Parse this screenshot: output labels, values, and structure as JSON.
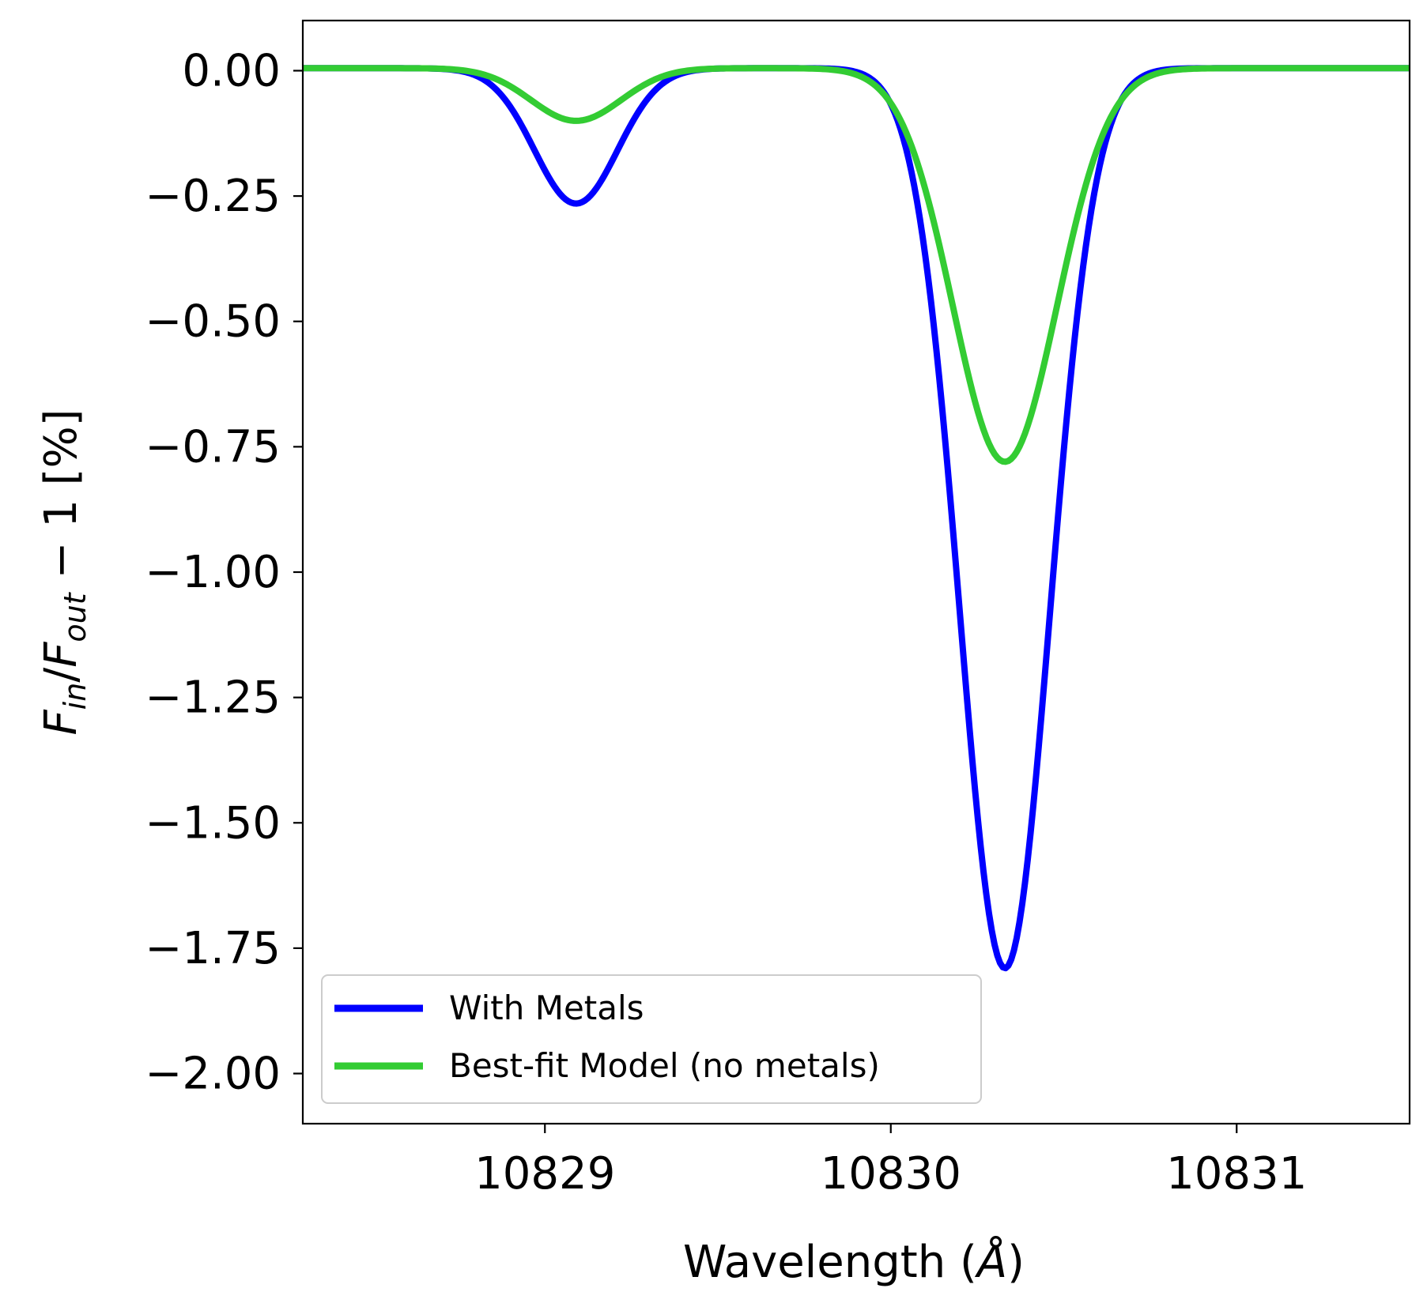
{
  "chart_data": {
    "type": "line",
    "title": "",
    "xlabel": "Wavelength ($\\AA$)",
    "xlabel_parts": {
      "prefix": "Wavelength (",
      "unit": "Å",
      "suffix": ")"
    },
    "ylabel": "$F_{in}/F_{out} - 1$ [%]",
    "ylabel_parts": {
      "f1": "F",
      "sub1": "in",
      "slash": "/",
      "f2": "F",
      "sub2": "out",
      "tail": " − 1 [%]"
    },
    "xlim": [
      10828.3,
      10831.5
    ],
    "ylim": [
      -2.1,
      0.1
    ],
    "xticks": [
      10829,
      10830,
      10831
    ],
    "xtick_labels": [
      "10829",
      "10830",
      "10831"
    ],
    "yticks": [
      0.0,
      -0.25,
      -0.5,
      -0.75,
      -1.0,
      -1.25,
      -1.5,
      -1.75,
      -2.0
    ],
    "ytick_labels": [
      "0.00",
      "−0.25",
      "−0.50",
      "−0.75",
      "−1.00",
      "−1.25",
      "−1.50",
      "−1.75",
      "−2.00"
    ],
    "grid": false,
    "legend_position": "lower-left",
    "series": [
      {
        "name": "With Metals",
        "color": "#0000ff",
        "baseline": 0.005,
        "lines": [
          {
            "center": 10829.09,
            "depth": 0.27,
            "sigma": 0.12
          },
          {
            "center": 10830.33,
            "depth": 1.795,
            "sigma": 0.13
          }
        ]
      },
      {
        "name": "Best-fit Model (no metals)",
        "color": "#33cc33",
        "baseline": 0.005,
        "lines": [
          {
            "center": 10829.09,
            "depth": 0.105,
            "sigma": 0.13
          },
          {
            "center": 10830.33,
            "depth": 0.785,
            "sigma": 0.15
          }
        ]
      }
    ]
  }
}
